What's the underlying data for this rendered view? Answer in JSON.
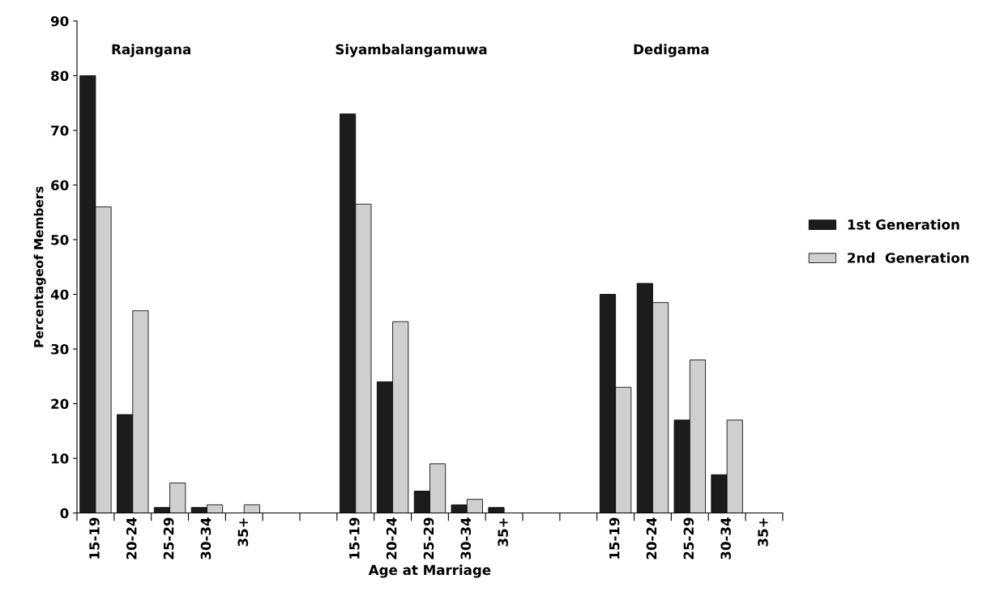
{
  "chart_data": {
    "type": "bar",
    "xlabel": "Age at Marriage",
    "ylabel": "Percentageof Members",
    "categories": [
      "15-19",
      "20-24",
      "25-29",
      "30-34",
      "35+",
      null,
      null,
      "15-19",
      "20-24",
      "25-29",
      "30-34",
      "35+",
      null,
      null,
      "15-19",
      "20-24",
      "25-29",
      "30-34",
      "35+"
    ],
    "series": [
      {
        "name": "1st Generation",
        "color": "#1c1c1c",
        "values": [
          80,
          18,
          1,
          1,
          0,
          null,
          null,
          73,
          24,
          4,
          1.5,
          1,
          null,
          null,
          40,
          42,
          17,
          7,
          0
        ]
      },
      {
        "name": "2nd  Generation",
        "color": "#cfcfcf",
        "values": [
          56,
          37,
          5.5,
          1.5,
          1.5,
          null,
          null,
          56.5,
          35,
          9,
          2.5,
          0,
          null,
          null,
          23,
          38.5,
          28,
          17,
          0
        ]
      }
    ],
    "annotations": [
      "Rajangana",
      "Siyambalangamuwa",
      "Dedigama"
    ],
    "ylim": [
      0,
      90
    ],
    "yticks": [
      0,
      10,
      20,
      30,
      40,
      50,
      60,
      70,
      80,
      90
    ],
    "grid": false,
    "legend": "right"
  }
}
